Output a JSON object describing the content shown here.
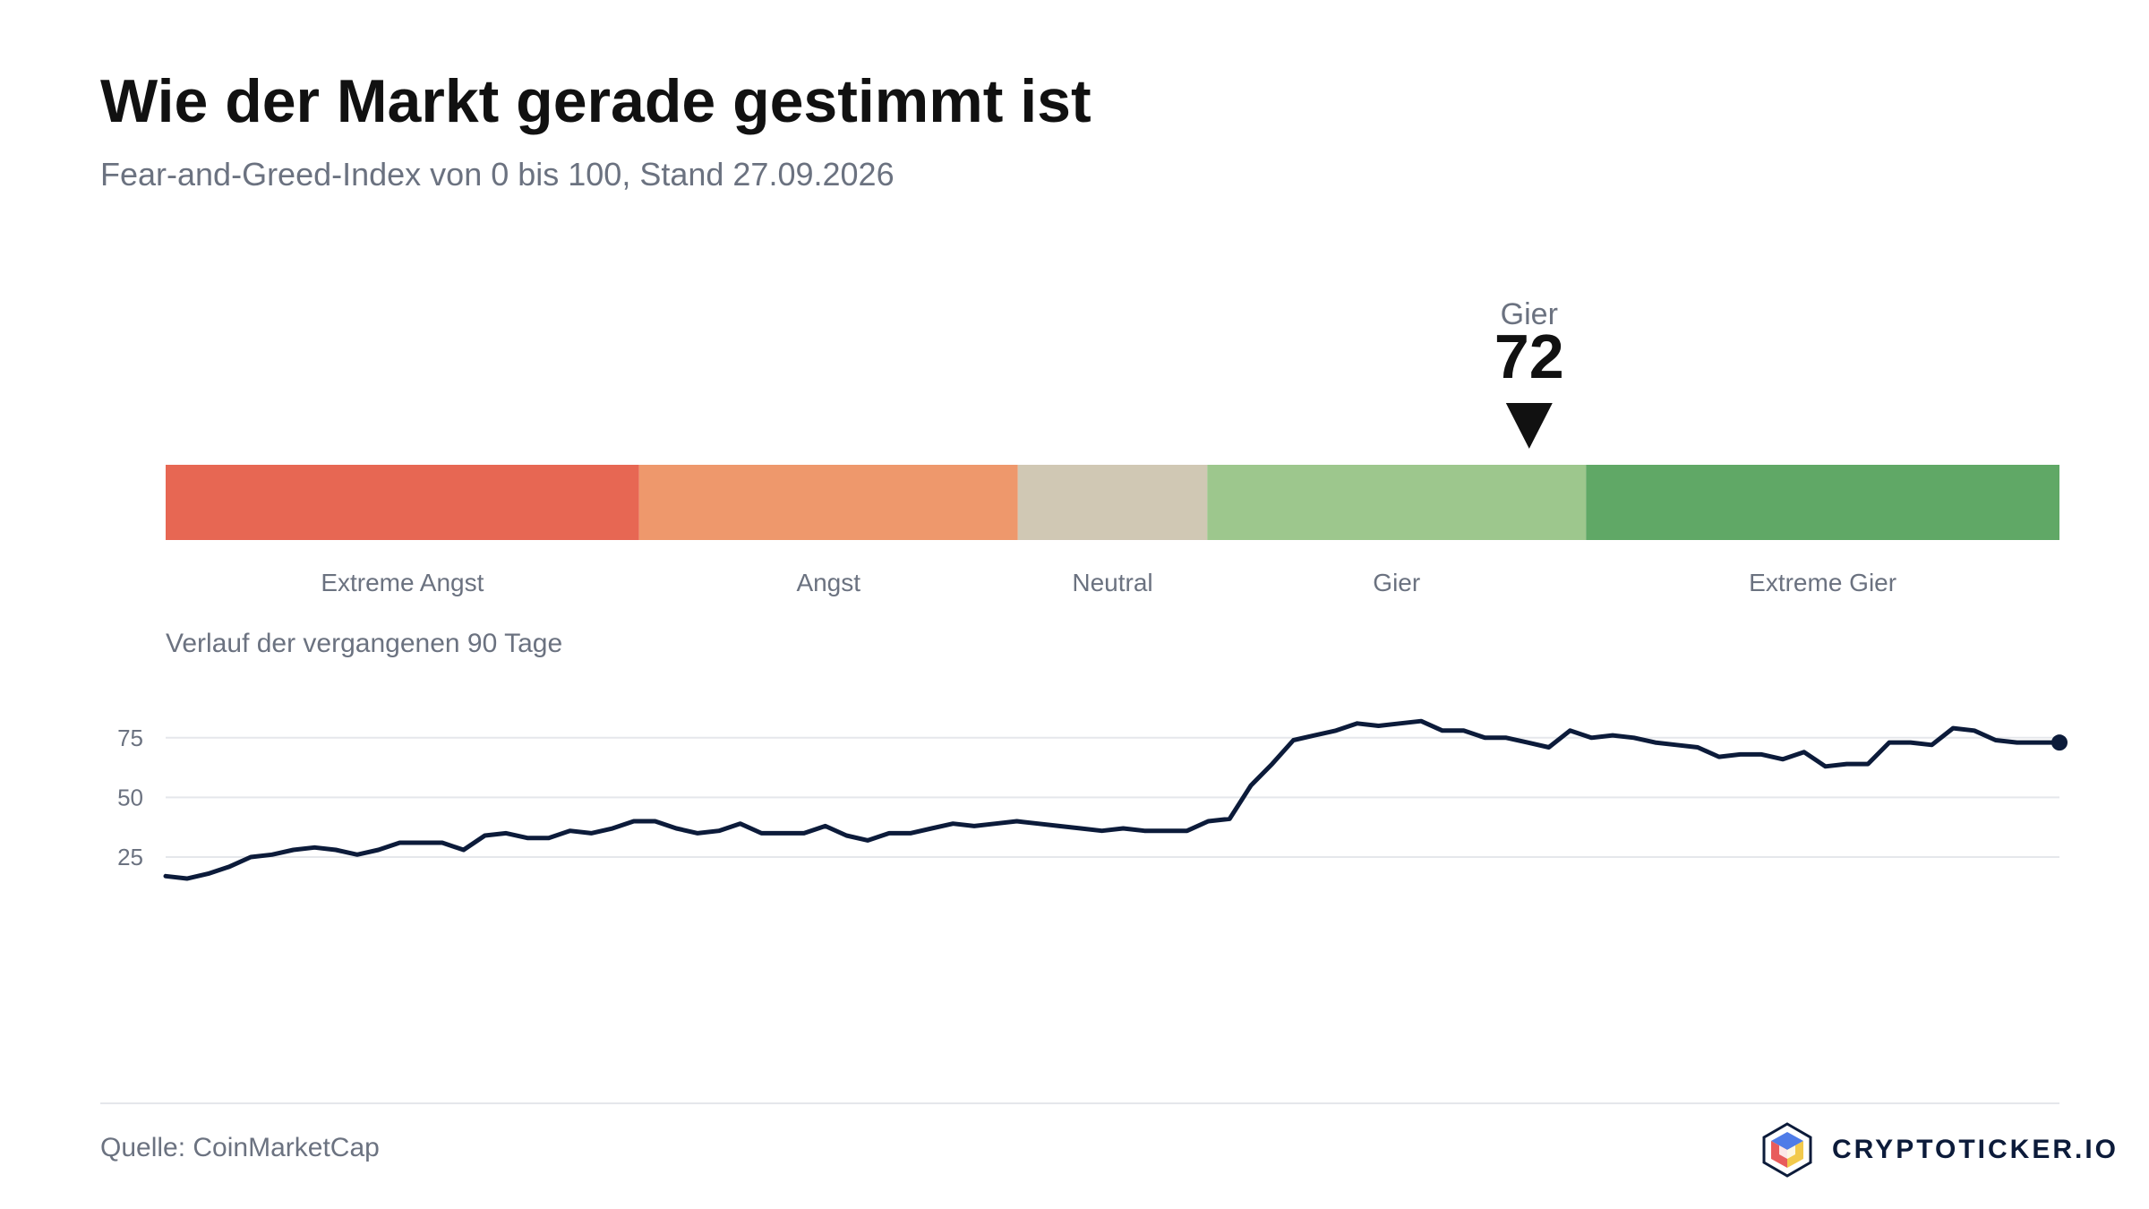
{
  "header": {
    "title": "Wie der Markt gerade gestimmt ist",
    "subtitle": "Fear-and-Greed-Index von 0 bis 100, Stand 27.09.2026"
  },
  "footer": {
    "source": "Quelle: CoinMarketCap",
    "brand": "CRYPTOTICKER.IO"
  },
  "chart_data": [
    {
      "type": "gauge-bar",
      "range": [
        0,
        100
      ],
      "value": 72,
      "value_label": "Gier",
      "segments": [
        {
          "label": "Extreme Angst",
          "from": 0,
          "to": 25,
          "color": "#e76753"
        },
        {
          "label": "Angst",
          "from": 25,
          "to": 45,
          "color": "#ee986c"
        },
        {
          "label": "Neutral",
          "from": 45,
          "to": 55,
          "color": "#d0c8b4"
        },
        {
          "label": "Gier",
          "from": 55,
          "to": 75,
          "color": "#9dc78d"
        },
        {
          "label": "Extreme Gier",
          "from": 75,
          "to": 100,
          "color": "#60a866"
        }
      ]
    },
    {
      "type": "line",
      "title": "Verlauf der vergangenen 90 Tage",
      "yticks": [
        25,
        50,
        75
      ],
      "ylim": [
        0,
        100
      ],
      "grid": true,
      "line_color": "#0c1b3a",
      "values": [
        17,
        16,
        18,
        21,
        25,
        26,
        28,
        29,
        28,
        26,
        28,
        31,
        31,
        31,
        28,
        34,
        35,
        33,
        33,
        36,
        35,
        37,
        40,
        40,
        37,
        35,
        36,
        39,
        35,
        35,
        35,
        38,
        34,
        32,
        35,
        35,
        37,
        39,
        38,
        39,
        40,
        39,
        38,
        37,
        36,
        37,
        36,
        36,
        36,
        40,
        41,
        55,
        64,
        74,
        76,
        78,
        81,
        80,
        81,
        82,
        78,
        78,
        75,
        75,
        73,
        71,
        78,
        75,
        76,
        75,
        73,
        72,
        71,
        67,
        68,
        68,
        66,
        69,
        63,
        64,
        64,
        73,
        73,
        72,
        79,
        78,
        74,
        73,
        73,
        73
      ]
    }
  ],
  "colors": {
    "title": "#111111",
    "muted": "#6b7280",
    "line": "#0c1b3a"
  },
  "icons": {
    "pointer": "down-triangle-icon",
    "logo": "cube-logo-icon"
  }
}
